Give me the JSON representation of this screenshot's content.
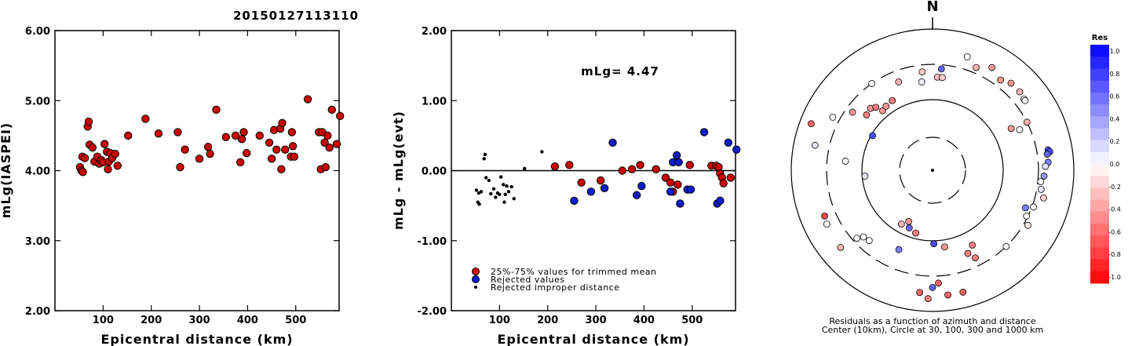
{
  "title": "20150127113110",
  "chart_data": [
    {
      "type": "scatter",
      "xlabel": "Epicentral distance (km)",
      "ylabel": "mLg(IASPEI)",
      "xlim": [
        0,
        590
      ],
      "ylim": [
        2.0,
        6.0
      ],
      "xticks": [
        "100",
        "200",
        "300",
        "400",
        "500"
      ],
      "yticks": [
        "2.00",
        "3.00",
        "4.00",
        "5.00",
        "6.00"
      ],
      "series": [
        {
          "color": "#cc0000",
          "points": [
            [
              52,
              4.05
            ],
            [
              55,
              4.0
            ],
            [
              57,
              4.2
            ],
            [
              58,
              3.98
            ],
            [
              62,
              4.18
            ],
            [
              68,
              4.63
            ],
            [
              70,
              4.7
            ],
            [
              72,
              4.37
            ],
            [
              78,
              4.33
            ],
            [
              82,
              4.13
            ],
            [
              88,
              4.2
            ],
            [
              92,
              4.1
            ],
            [
              96,
              4.15
            ],
            [
              100,
              4.12
            ],
            [
              103,
              4.38
            ],
            [
              108,
              4.27
            ],
            [
              110,
              4.02
            ],
            [
              112,
              4.13
            ],
            [
              115,
              4.25
            ],
            [
              119,
              4.18
            ],
            [
              125,
              4.24
            ],
            [
              130,
              4.07
            ],
            [
              152,
              4.5
            ],
            [
              188,
              4.74
            ],
            [
              215,
              4.53
            ],
            [
              255,
              4.55
            ],
            [
              260,
              4.05
            ],
            [
              270,
              4.3
            ],
            [
              300,
              4.17
            ],
            [
              318,
              4.34
            ],
            [
              322,
              4.24
            ],
            [
              335,
              4.87
            ],
            [
              355,
              4.48
            ],
            [
              375,
              4.5
            ],
            [
              385,
              4.12
            ],
            [
              388,
              4.45
            ],
            [
              392,
              4.55
            ],
            [
              398,
              4.25
            ],
            [
              425,
              4.5
            ],
            [
              445,
              4.4
            ],
            [
              450,
              4.17
            ],
            [
              455,
              4.58
            ],
            [
              460,
              4.3
            ],
            [
              468,
              4.6
            ],
            [
              470,
              4.02
            ],
            [
              472,
              4.68
            ],
            [
              478,
              4.3
            ],
            [
              490,
              4.2
            ],
            [
              492,
              4.55
            ],
            [
              494,
              4.35
            ],
            [
              497,
              4.2
            ],
            [
              525,
              5.02
            ],
            [
              548,
              4.55
            ],
            [
              552,
              4.02
            ],
            [
              555,
              4.55
            ],
            [
              560,
              4.4
            ],
            [
              562,
              4.05
            ],
            [
              566,
              4.5
            ],
            [
              570,
              4.33
            ],
            [
              575,
              4.87
            ],
            [
              585,
              4.38
            ],
            [
              592,
              4.78
            ]
          ]
        }
      ]
    },
    {
      "type": "scatter",
      "xlabel": "Epicentral distance (km)",
      "ylabel": "mLg - mLg(evt)",
      "xlim": [
        0,
        590
      ],
      "ylim": [
        -2.0,
        2.0
      ],
      "xticks": [
        "100",
        "200",
        "300",
        "400",
        "500"
      ],
      "yticks": [
        "-2.00",
        "-1.00",
        "0.00",
        "1.00",
        "2.00"
      ],
      "annotation": "mLg= 4.47",
      "reference_line": 0.0,
      "series": [
        {
          "name": "25%-75% values for trimmed mean",
          "color": "#cc0000",
          "points": [
            [
              215,
              0.06
            ],
            [
              245,
              0.08
            ],
            [
              270,
              -0.17
            ],
            [
              310,
              -0.14
            ],
            [
              355,
              0.0
            ],
            [
              375,
              0.02
            ],
            [
              392,
              0.08
            ],
            [
              425,
              0.02
            ],
            [
              445,
              -0.1
            ],
            [
              455,
              -0.17
            ],
            [
              460,
              -0.3
            ],
            [
              470,
              -0.2
            ],
            [
              495,
              0.08
            ],
            [
              540,
              0.07
            ],
            [
              550,
              0.07
            ],
            [
              555,
              0.05
            ],
            [
              558,
              -0.04
            ],
            [
              562,
              -0.1
            ],
            [
              565,
              -0.18
            ],
            [
              580,
              -0.1
            ]
          ]
        },
        {
          "name": "Rejected values",
          "color": "#0a1ec8",
          "points": [
            [
              255,
              -0.43
            ],
            [
              290,
              -0.3
            ],
            [
              318,
              -0.25
            ],
            [
              335,
              0.4
            ],
            [
              385,
              -0.35
            ],
            [
              395,
              -0.22
            ],
            [
              455,
              -0.3
            ],
            [
              460,
              0.12
            ],
            [
              468,
              0.22
            ],
            [
              472,
              0.12
            ],
            [
              475,
              -0.47
            ],
            [
              490,
              -0.27
            ],
            [
              497,
              -0.27
            ],
            [
              525,
              0.55
            ],
            [
              552,
              -0.47
            ],
            [
              558,
              -0.43
            ],
            [
              575,
              0.4
            ],
            [
              592,
              0.3
            ]
          ]
        },
        {
          "name": "Rejected improper distance",
          "color": "#000000",
          "small": true,
          "points": [
            [
              52,
              -0.28
            ],
            [
              55,
              -0.45
            ],
            [
              57,
              -0.32
            ],
            [
              58,
              -0.48
            ],
            [
              62,
              -0.3
            ],
            [
              68,
              0.17
            ],
            [
              70,
              0.23
            ],
            [
              72,
              -0.1
            ],
            [
              78,
              -0.14
            ],
            [
              82,
              -0.33
            ],
            [
              88,
              -0.26
            ],
            [
              92,
              -0.38
            ],
            [
              96,
              -0.32
            ],
            [
              100,
              -0.34
            ],
            [
              103,
              -0.09
            ],
            [
              108,
              -0.2
            ],
            [
              110,
              -0.45
            ],
            [
              112,
              -0.34
            ],
            [
              115,
              -0.22
            ],
            [
              119,
              -0.3
            ],
            [
              125,
              -0.23
            ],
            [
              130,
              -0.4
            ],
            [
              152,
              0.03
            ],
            [
              188,
              0.27
            ]
          ]
        }
      ]
    },
    {
      "type": "polar-scatter",
      "north_label": "N",
      "caption_line1": "Residuals as a function of azimuth and distance",
      "caption_line2": "Center (10km), Circle at 30, 100, 300 and 1000 km",
      "colorbar": {
        "title": "Res",
        "ticks": [
          "1.0",
          "0.8",
          "0.6",
          "0.4",
          "0.2",
          "0.0",
          "-0.2",
          "-0.4",
          "-0.6",
          "-0.8",
          "-1.0"
        ]
      },
      "points": [
        [
          -7,
          0.63,
          0.05
        ],
        [
          5,
          0.72,
          0.6
        ],
        [
          -6,
          0.7,
          -0.2
        ],
        [
          3,
          0.66,
          -0.25
        ],
        [
          6,
          0.66,
          -0.2
        ],
        [
          17,
          0.84,
          0.0
        ],
        [
          23,
          0.79,
          -0.3
        ],
        [
          30,
          0.84,
          -0.4
        ],
        [
          37,
          0.8,
          -0.4
        ],
        [
          42,
          0.83,
          -0.4
        ],
        [
          48,
          0.83,
          -0.3
        ],
        [
          52,
          0.82,
          0.0
        ],
        [
          53,
          0.82,
          0.0
        ],
        [
          63,
          0.75,
          -0.3
        ],
        [
          62,
          0.63,
          -0.4
        ],
        [
          65,
          0.68,
          0.0
        ],
        [
          80,
          0.83,
          0.7
        ],
        [
          81,
          0.84,
          0.7
        ],
        [
          82,
          0.82,
          0.6
        ],
        [
          86,
          0.82,
          0.5
        ],
        [
          88,
          0.8,
          0.1
        ],
        [
          93,
          0.79,
          0.4
        ],
        [
          96,
          0.77,
          0.0
        ],
        [
          100,
          0.78,
          0.1
        ],
        [
          104,
          0.81,
          -0.2
        ],
        [
          110,
          0.76,
          0.0
        ],
        [
          112,
          0.71,
          0.5
        ],
        [
          116,
          0.74,
          0.0
        ],
        [
          120,
          0.78,
          -0.1
        ],
        [
          136,
          0.75,
          0.0
        ],
        [
          152,
          0.6,
          -0.5
        ],
        [
          154,
          0.69,
          -0.5
        ],
        [
          157,
          0.64,
          -0.5
        ],
        [
          171,
          0.55,
          -0.4
        ],
        [
          179,
          0.52,
          0.7
        ],
        [
          177,
          0.8,
          -0.6
        ],
        [
          180,
          0.83,
          0.6
        ],
        [
          186,
          0.87,
          -0.6
        ],
        [
          182,
          0.91,
          -0.5
        ],
        [
          173,
          0.89,
          -0.6
        ],
        [
          166,
          0.89,
          -0.6
        ],
        [
          195,
          0.46,
          -0.5
        ],
        [
          202,
          0.44,
          0.6
        ],
        [
          205,
          0.4,
          -0.4
        ],
        [
          210,
          0.44,
          -0.3
        ],
        [
          203,
          0.61,
          0.5
        ],
        [
          222,
          0.67,
          0.0
        ],
        [
          226,
          0.68,
          0.0
        ],
        [
          228,
          0.72,
          0.0
        ],
        [
          230,
          0.85,
          -0.3
        ],
        [
          243,
          0.84,
          0.0
        ],
        [
          247,
          0.83,
          -0.7
        ],
        [
          265,
          0.48,
          0.1
        ],
        [
          276,
          0.62,
          0.0
        ],
        [
          300,
          0.49,
          0.7
        ],
        [
          315,
          0.62,
          -0.4
        ],
        [
          310,
          0.61,
          -0.5
        ],
        [
          318,
          0.6,
          -0.5
        ],
        [
          320,
          0.55,
          -0.4
        ],
        [
          324,
          0.56,
          -0.4
        ],
        [
          330,
          0.57,
          -0.5
        ],
        [
          306,
          0.7,
          -0.4
        ],
        [
          298,
          0.8,
          0.0
        ],
        [
          282,
          0.85,
          0.1
        ],
        [
          291,
          0.92,
          -0.6
        ],
        [
          325,
          0.75,
          0.0
        ],
        [
          339,
          0.67,
          -0.3
        ]
      ]
    }
  ]
}
